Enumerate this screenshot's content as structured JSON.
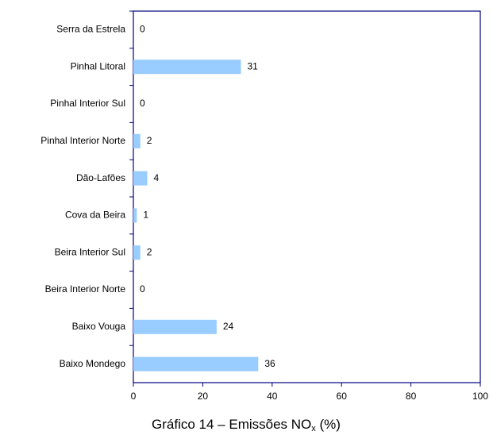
{
  "chart_data": {
    "type": "bar",
    "orientation": "horizontal",
    "title": [
      "Gráfico 14 – Emissões NO",
      "x",
      " (%)"
    ],
    "categories": [
      "Serra da Estrela",
      "Pinhal Litoral",
      "Pinhal Interior Sul",
      "Pinhal Interior Norte",
      "Dão-Lafões",
      "Cova da Beira",
      "Beira Interior Sul",
      "Beira Interior Norte",
      "Baixo Vouga",
      "Baixo Mondego"
    ],
    "values": [
      0,
      31,
      0,
      2,
      4,
      1,
      2,
      0,
      24,
      36
    ],
    "color": "#99ccff",
    "xlim": [
      0,
      100
    ],
    "xticks": [
      0,
      20,
      40,
      60,
      80,
      100
    ],
    "grid": false
  }
}
